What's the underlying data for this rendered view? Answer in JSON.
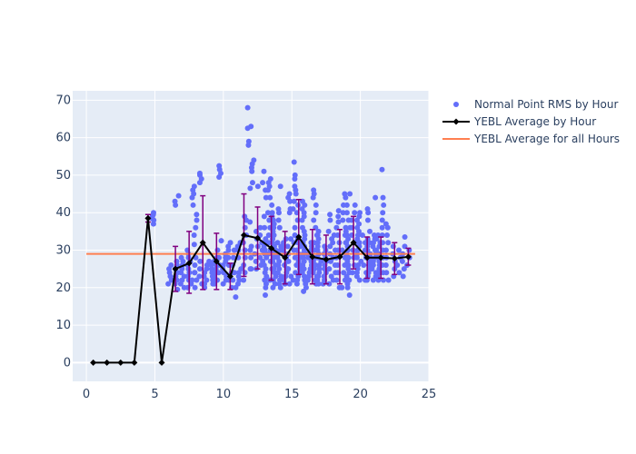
{
  "chart_data": {
    "type": "scatter",
    "title": "",
    "xlabel": "",
    "ylabel": "",
    "xlim": [
      -1,
      25
    ],
    "ylim": [
      -5,
      72.5
    ],
    "x_ticks": [
      0,
      5,
      10,
      15,
      20,
      25
    ],
    "y_ticks": [
      0,
      10,
      20,
      30,
      40,
      50,
      60,
      70
    ],
    "grid": true,
    "legend_placement": "right",
    "colors": {
      "scatter": "#636efa",
      "line": "#000000",
      "hline": "#ff7f50",
      "error_bar": "#800080",
      "plot_bg": "#e5ecf6",
      "grid": "#ffffff"
    },
    "series": [
      {
        "name": "Normal Point RMS by Hour",
        "kind": "scatter",
        "clusters": [
          {
            "x": 4.9,
            "values": [
              37,
              38,
              38.5,
              39,
              39.5,
              40
            ]
          },
          {
            "x": 6.1,
            "values": [
              21,
              22,
              23,
              24,
              25,
              26
            ]
          },
          {
            "x": 6.6,
            "values": [
              19.5,
              21,
              22,
              23,
              24,
              25,
              26,
              27,
              42,
              43,
              44.5
            ]
          },
          {
            "x": 7.0,
            "values": [
              20,
              21,
              22,
              23,
              24,
              25,
              26,
              27,
              28
            ]
          },
          {
            "x": 7.5,
            "values": [
              20,
              21,
              22,
              23,
              24,
              25,
              26,
              27,
              28,
              29,
              30
            ]
          },
          {
            "x": 7.8,
            "values": [
              20,
              22,
              24,
              42,
              44,
              45,
              46,
              47
            ]
          },
          {
            "x": 8.0,
            "values": [
              22,
              24,
              26,
              28,
              31.5,
              34,
              36,
              38,
              39.5
            ]
          },
          {
            "x": 8.3,
            "values": [
              21,
              23,
              25,
              27,
              48,
              49,
              50,
              50.5
            ]
          },
          {
            "x": 8.7,
            "values": [
              20,
              21,
              22,
              23,
              24,
              25,
              26
            ]
          },
          {
            "x": 9.1,
            "values": [
              21,
              22,
              23,
              24,
              25,
              26,
              27
            ]
          },
          {
            "x": 9.4,
            "values": [
              21,
              22,
              23,
              24,
              25,
              26,
              27,
              28
            ]
          },
          {
            "x": 9.7,
            "values": [
              22,
              24,
              26,
              28,
              30,
              32.5,
              49.5,
              50.5,
              51.5,
              52.5
            ]
          },
          {
            "x": 10.1,
            "values": [
              21,
              22,
              23,
              24,
              25,
              26,
              27,
              28,
              29
            ]
          },
          {
            "x": 10.5,
            "values": [
              20,
              22,
              24,
              26,
              28,
              30,
              31,
              32
            ]
          },
          {
            "x": 10.8,
            "values": [
              17.5,
              20,
              22,
              24,
              26,
              28,
              30
            ]
          },
          {
            "x": 11.2,
            "values": [
              21,
              22,
              23,
              24,
              25,
              28,
              30,
              31,
              32
            ]
          },
          {
            "x": 11.6,
            "values": [
              22,
              24,
              26,
              28,
              30,
              32,
              34,
              36,
              38,
              39
            ]
          },
          {
            "x": 11.9,
            "values": [
              25,
              30,
              37.5,
              58,
              59,
              62.5,
              63,
              68
            ]
          },
          {
            "x": 12.1,
            "values": [
              25,
              28,
              31,
              46.5,
              48,
              51,
              52,
              53,
              54
            ]
          },
          {
            "x": 12.4,
            "values": [
              25,
              27,
              29,
              31,
              33,
              35,
              47
            ]
          },
          {
            "x": 12.7,
            "values": [
              26,
              28,
              30,
              32,
              34,
              36
            ]
          },
          {
            "x": 13.0,
            "values": [
              18,
              20,
              21,
              22,
              23,
              24,
              25,
              26,
              27,
              28,
              29,
              30,
              31,
              32,
              33,
              36,
              39,
              44,
              46,
              48,
              51
            ]
          },
          {
            "x": 13.4,
            "values": [
              22,
              25,
              27,
              29,
              30,
              32,
              34,
              36,
              38,
              40,
              42,
              44,
              46,
              47,
              48,
              49
            ]
          },
          {
            "x": 13.7,
            "values": [
              20,
              21,
              22,
              23,
              24,
              25,
              26,
              27,
              28,
              29,
              30,
              31,
              32,
              33,
              34,
              35,
              36,
              37,
              38,
              39,
              40
            ]
          },
          {
            "x": 14.1,
            "values": [
              20,
              21,
              22,
              23,
              24,
              25,
              26,
              27,
              28,
              29,
              30,
              31,
              32,
              36,
              38,
              40,
              41,
              47
            ]
          },
          {
            "x": 14.5,
            "values": [
              21,
              22,
              23,
              24,
              25,
              26,
              27,
              28,
              29,
              30,
              31,
              32,
              33
            ]
          },
          {
            "x": 14.8,
            "values": [
              21,
              23,
              25,
              27,
              29,
              31,
              33,
              40,
              41,
              43,
              44,
              45
            ]
          },
          {
            "x": 15.2,
            "values": [
              22,
              24,
              26,
              28,
              30,
              32,
              34,
              36,
              41,
              43,
              45,
              46,
              47,
              49,
              50,
              53.5
            ]
          },
          {
            "x": 15.5,
            "values": [
              21,
              22,
              23,
              24,
              25,
              26,
              27,
              28,
              29,
              30,
              31,
              32,
              33,
              38,
              40,
              42
            ]
          },
          {
            "x": 15.9,
            "values": [
              19,
              20,
              21,
              22,
              23,
              24,
              25,
              26,
              27,
              28,
              29,
              30,
              31,
              32,
              33,
              34,
              35,
              36,
              38,
              39,
              40,
              41,
              42,
              43
            ]
          },
          {
            "x": 16.3,
            "values": [
              22,
              23,
              24,
              25,
              26,
              27,
              28,
              29,
              30,
              31,
              32
            ]
          },
          {
            "x": 16.7,
            "values": [
              21,
              22,
              23,
              24,
              25,
              26,
              27,
              28,
              30,
              32,
              34,
              36,
              38,
              40,
              42,
              44,
              45,
              46
            ]
          },
          {
            "x": 17.0,
            "values": [
              21,
              22,
              23,
              24,
              25,
              26,
              27,
              28,
              29,
              30,
              31,
              32,
              33,
              34,
              35
            ]
          },
          {
            "x": 17.4,
            "values": [
              21,
              22,
              23,
              24,
              25,
              26,
              27,
              28,
              29,
              30,
              31
            ]
          },
          {
            "x": 17.8,
            "values": [
              21,
              23,
              25,
              27,
              29,
              31,
              33,
              35,
              38,
              39.5
            ]
          },
          {
            "x": 18.1,
            "values": [
              22,
              24,
              26,
              28,
              30,
              32,
              34
            ]
          },
          {
            "x": 18.4,
            "values": [
              20,
              22,
              24,
              26,
              28,
              30,
              32,
              34,
              36,
              37.5,
              39,
              40.5
            ]
          },
          {
            "x": 18.8,
            "values": [
              20,
              22,
              24,
              26,
              28,
              30,
              32,
              34,
              36,
              38,
              40,
              42,
              44,
              45
            ]
          },
          {
            "x": 19.1,
            "values": [
              18,
              20,
              21,
              22,
              23,
              24,
              25,
              26,
              27,
              28,
              29,
              30,
              31,
              32,
              33,
              34,
              35,
              36,
              38,
              40,
              42,
              45
            ]
          },
          {
            "x": 19.5,
            "values": [
              24,
              26,
              28,
              30,
              32,
              34,
              36,
              38,
              40,
              42
            ]
          },
          {
            "x": 19.9,
            "values": [
              22,
              23,
              24,
              25,
              26,
              27,
              28,
              29,
              30,
              31,
              32,
              33,
              34,
              35,
              36,
              37,
              38,
              39,
              40
            ]
          },
          {
            "x": 20.3,
            "values": [
              22,
              24,
              26,
              28,
              30,
              32,
              34
            ]
          },
          {
            "x": 20.6,
            "values": [
              22,
              23,
              24,
              25,
              26,
              27,
              28,
              29,
              30,
              31,
              32,
              33,
              35,
              38,
              40,
              41
            ]
          },
          {
            "x": 21.0,
            "values": [
              22,
              23,
              24,
              25,
              26,
              27,
              28,
              29,
              30,
              31,
              32,
              33,
              34,
              44
            ]
          },
          {
            "x": 21.3,
            "values": [
              22,
              23,
              24,
              25,
              26,
              27,
              28,
              29,
              30,
              31,
              32,
              33,
              34
            ]
          },
          {
            "x": 21.7,
            "values": [
              22,
              24,
              26,
              28,
              30,
              32,
              34,
              36,
              38,
              40,
              42,
              44,
              51.5
            ]
          },
          {
            "x": 22.0,
            "values": [
              22,
              24,
              26,
              28,
              30,
              32,
              34,
              36,
              37
            ]
          },
          {
            "x": 22.4,
            "values": [
              23,
              25,
              27,
              29,
              31
            ]
          },
          {
            "x": 22.8,
            "values": [
              24,
              26,
              28,
              30
            ]
          },
          {
            "x": 23.2,
            "values": [
              23,
              25,
              27,
              29,
              31,
              33.5
            ]
          },
          {
            "x": 23.5,
            "values": [
              26,
              28,
              30
            ]
          }
        ]
      },
      {
        "name": "YEBL Average by Hour",
        "kind": "line_error",
        "x": [
          0.5,
          1.5,
          2.5,
          3.5,
          4.5,
          5.5,
          6.5,
          7.5,
          8.5,
          9.5,
          10.5,
          11.5,
          12.5,
          13.5,
          14.5,
          15.5,
          16.5,
          17.5,
          18.5,
          19.5,
          20.5,
          21.5,
          22.5,
          23.5
        ],
        "y": [
          0,
          0,
          0,
          0,
          38.5,
          0,
          25,
          26.5,
          32,
          27,
          23,
          34,
          33.2,
          30.5,
          28,
          33.5,
          28.2,
          27.5,
          28.2,
          32,
          28,
          28,
          27.8,
          28.2
        ],
        "err_low": [
          0,
          0,
          0,
          0,
          37.5,
          0,
          19,
          18.5,
          19.5,
          19.5,
          19.5,
          23,
          25,
          22,
          21,
          23.5,
          21,
          21,
          21,
          25,
          22.5,
          22.5,
          23.5,
          26
        ],
        "err_high": [
          0,
          0,
          0,
          0,
          39.5,
          0,
          31,
          35,
          44.5,
          34.5,
          26.5,
          45,
          41.5,
          39,
          35,
          43.5,
          35.5,
          34,
          35.5,
          39,
          33.5,
          33.5,
          32,
          30.5
        ]
      },
      {
        "name": "YEBL Average for all Hours",
        "kind": "hline",
        "y": 29
      }
    ]
  }
}
